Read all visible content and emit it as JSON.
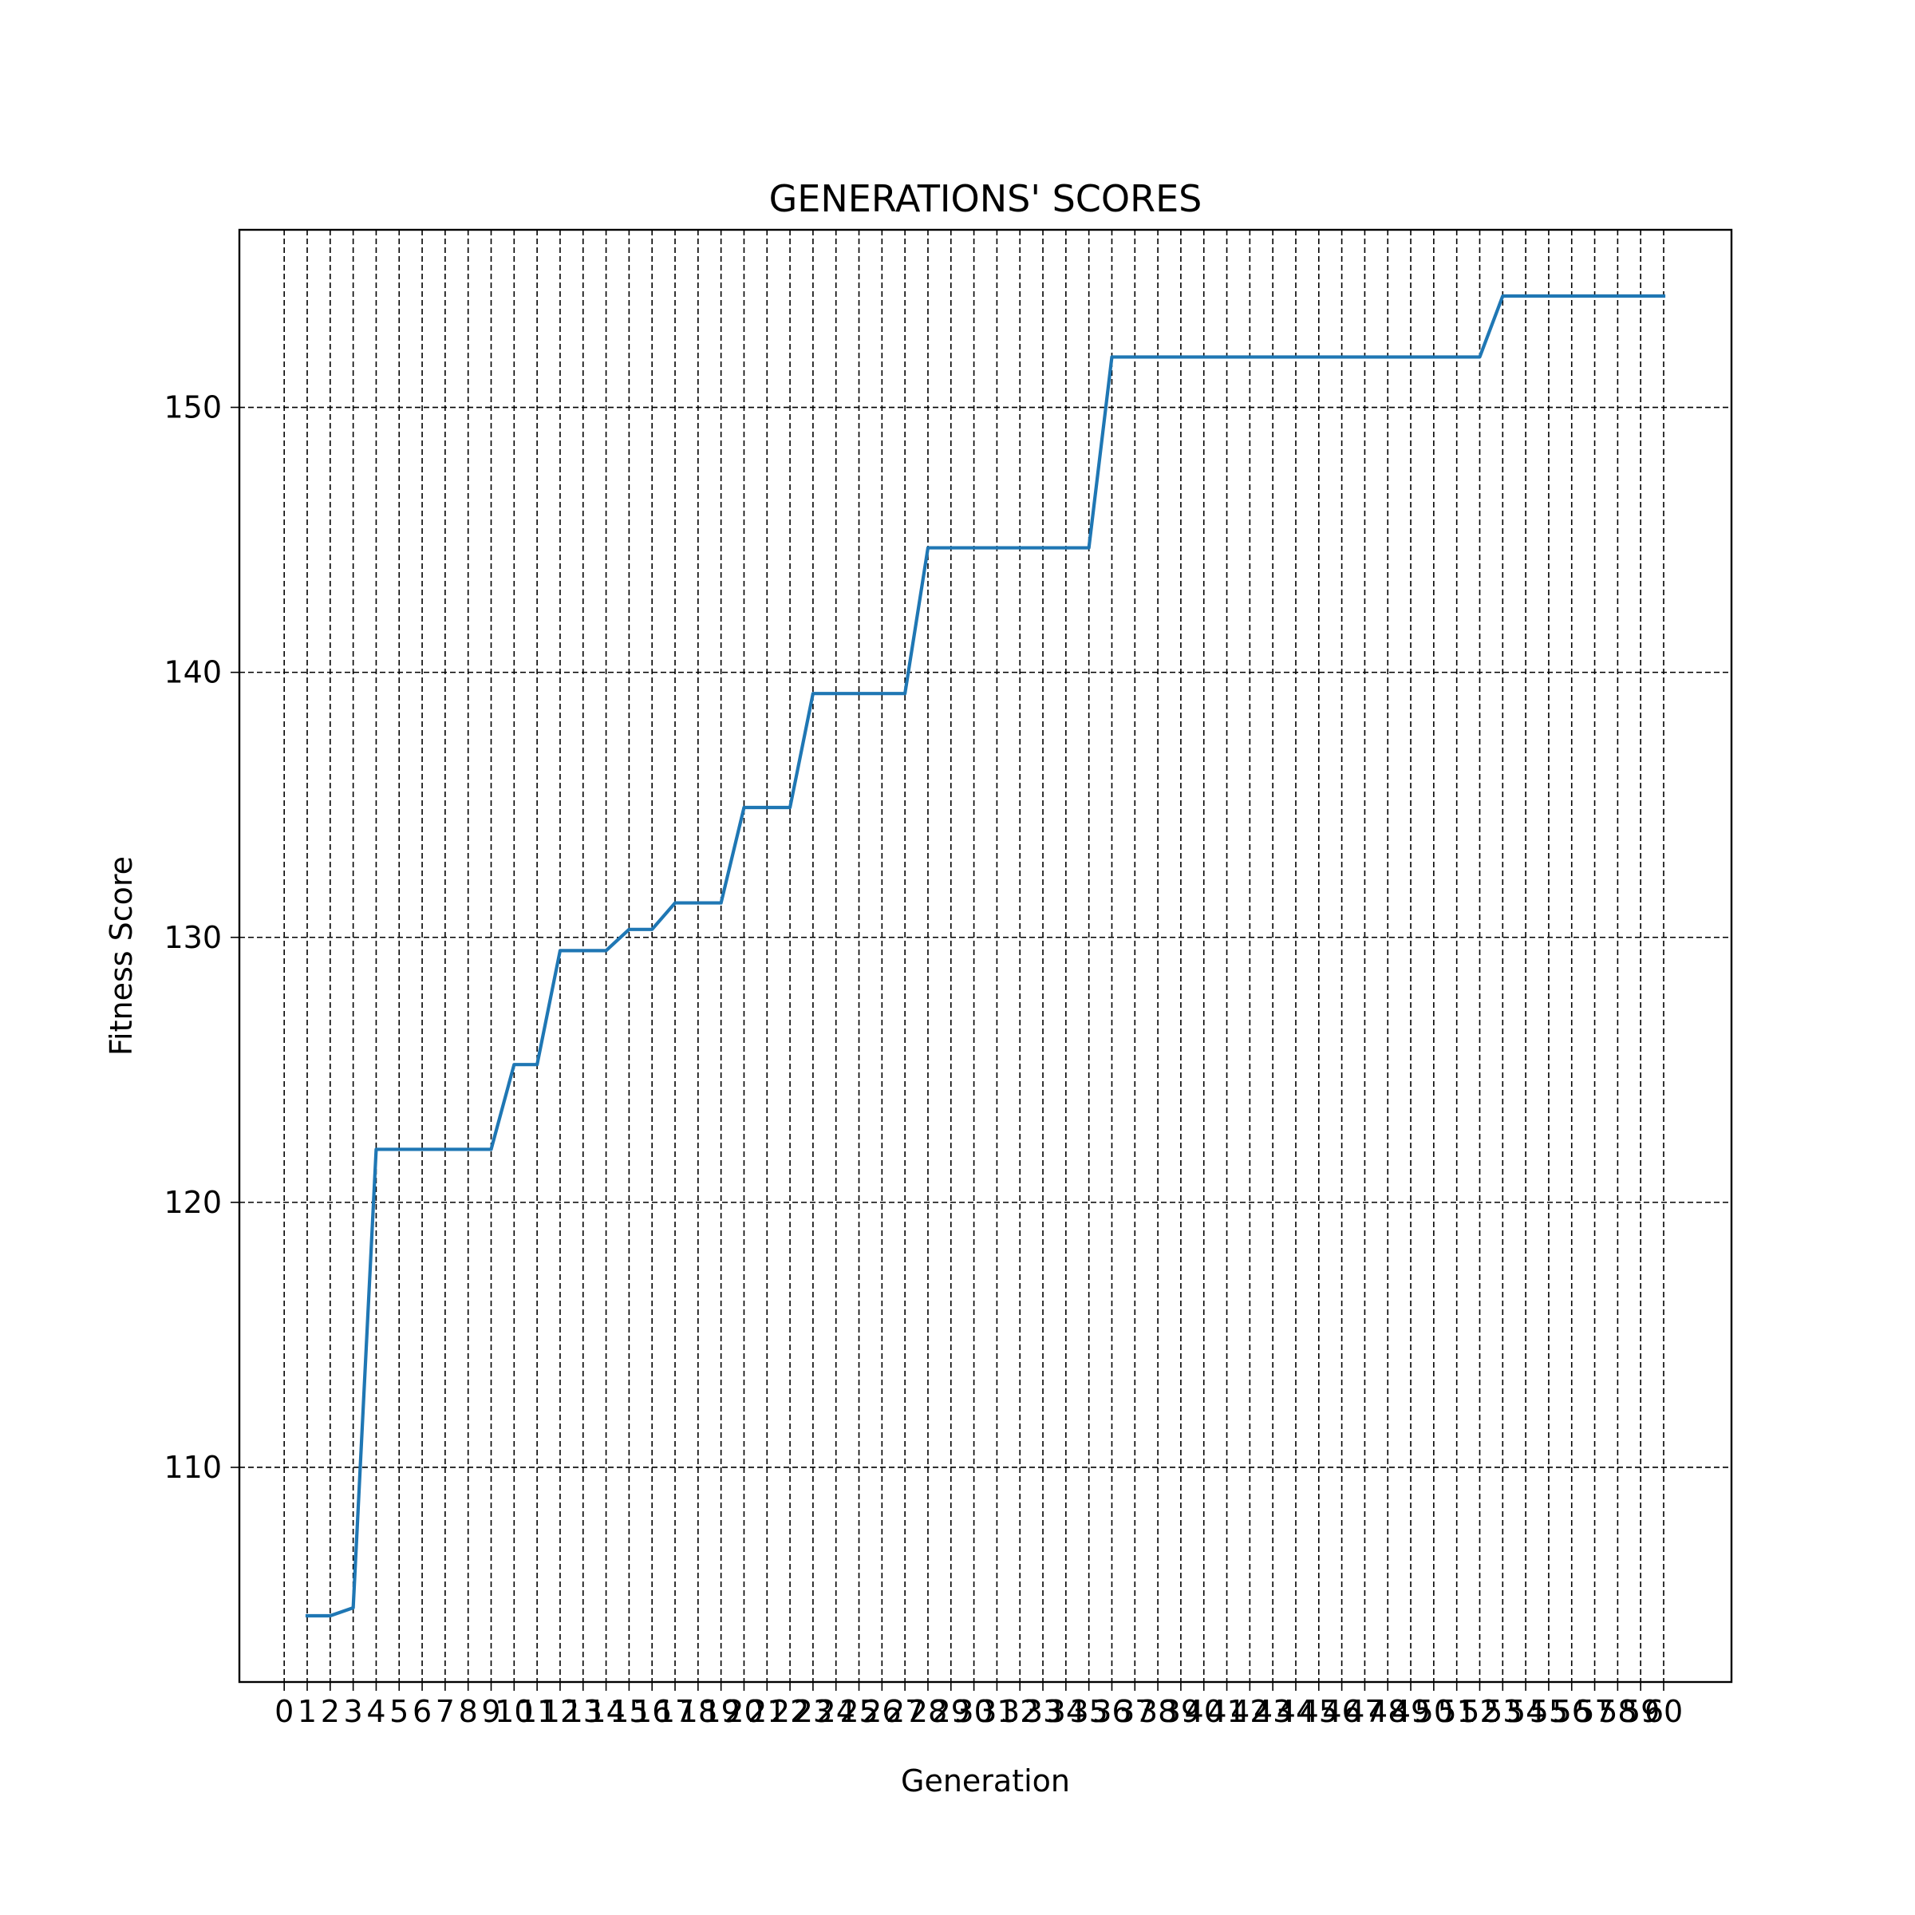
{
  "chart_data": {
    "type": "line",
    "title": "GENERATIONS' SCORES",
    "xlabel": "Generation",
    "ylabel": "Fitness Score",
    "x": [
      1,
      2,
      3,
      4,
      5,
      6,
      7,
      8,
      9,
      10,
      11,
      12,
      13,
      14,
      15,
      16,
      17,
      18,
      19,
      20,
      21,
      22,
      23,
      24,
      25,
      26,
      27,
      28,
      29,
      30,
      31,
      32,
      33,
      34,
      35,
      36,
      37,
      38,
      39,
      40,
      41,
      42,
      43,
      44,
      45,
      46,
      47,
      48,
      49,
      50,
      51,
      52,
      53,
      54,
      55,
      56,
      57,
      58,
      59,
      60
    ],
    "series": [
      {
        "values": [
          104.4,
          104.4,
          104.7,
          122.0,
          122.0,
          122.0,
          122.0,
          122.0,
          122.0,
          125.2,
          125.2,
          129.5,
          129.5,
          129.5,
          130.3,
          130.3,
          131.3,
          131.3,
          131.3,
          134.9,
          134.9,
          134.9,
          139.2,
          139.2,
          139.2,
          139.2,
          139.2,
          144.7,
          144.7,
          144.7,
          144.7,
          144.7,
          144.7,
          144.7,
          144.7,
          151.9,
          151.9,
          151.9,
          151.9,
          151.9,
          151.9,
          151.9,
          151.9,
          151.9,
          151.9,
          151.9,
          151.9,
          151.9,
          151.9,
          151.9,
          151.9,
          151.9,
          154.2,
          154.2,
          154.2,
          154.2,
          154.2,
          154.2,
          154.2,
          154.2
        ],
        "color": "#1f77b4"
      }
    ],
    "xticks": [
      0,
      1,
      2,
      3,
      4,
      5,
      6,
      7,
      8,
      9,
      10,
      11,
      12,
      13,
      14,
      15,
      16,
      17,
      18,
      19,
      20,
      21,
      22,
      23,
      24,
      25,
      26,
      27,
      28,
      29,
      30,
      31,
      32,
      33,
      34,
      35,
      36,
      37,
      38,
      39,
      40,
      41,
      42,
      43,
      44,
      45,
      46,
      47,
      48,
      49,
      50,
      51,
      52,
      53,
      54,
      55,
      56,
      57,
      58,
      59,
      60
    ],
    "yticks": [
      110,
      120,
      130,
      140,
      150
    ],
    "xlim": [
      -1.95,
      62.95
    ],
    "ylim": [
      101.9,
      156.7
    ],
    "grid": true,
    "legend": "none"
  }
}
